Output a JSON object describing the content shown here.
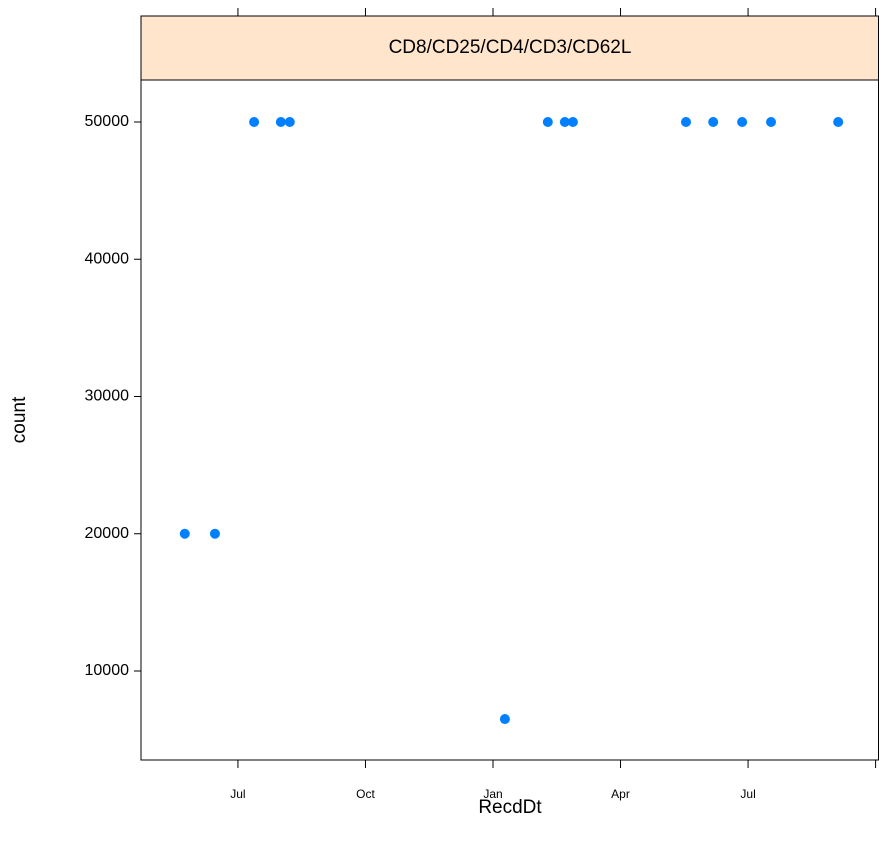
{
  "chart_data": {
    "type": "scatter",
    "title": "CD8/CD25/CD4/CD3/CD62L",
    "xlabel": "RecdDt",
    "ylabel": "count",
    "color": "#0080ff",
    "x": [
      -1.25,
      -0.54,
      0.38,
      1.01,
      1.22,
      6.28,
      7.29,
      7.69,
      7.88,
      10.54,
      11.18,
      11.86,
      12.54,
      14.12
    ],
    "values": [
      20000,
      20000,
      50000,
      50000,
      50000,
      6500,
      50000,
      50000,
      50000,
      50000,
      50000,
      50000,
      50000,
      50000
    ],
    "xlim": [
      -2.28,
      15.08
    ],
    "xticks": [
      {
        "value": 0,
        "label": "Jul"
      },
      {
        "value": 3,
        "label": "Oct"
      },
      {
        "value": 6,
        "label": "Jan"
      },
      {
        "value": 9,
        "label": "Apr"
      },
      {
        "value": 12,
        "label": "Jul"
      },
      {
        "value": 15,
        "label": null
      }
    ],
    "ylim": [
      3515,
      53060
    ],
    "yticks": [
      10000,
      20000,
      30000,
      40000,
      50000
    ]
  }
}
